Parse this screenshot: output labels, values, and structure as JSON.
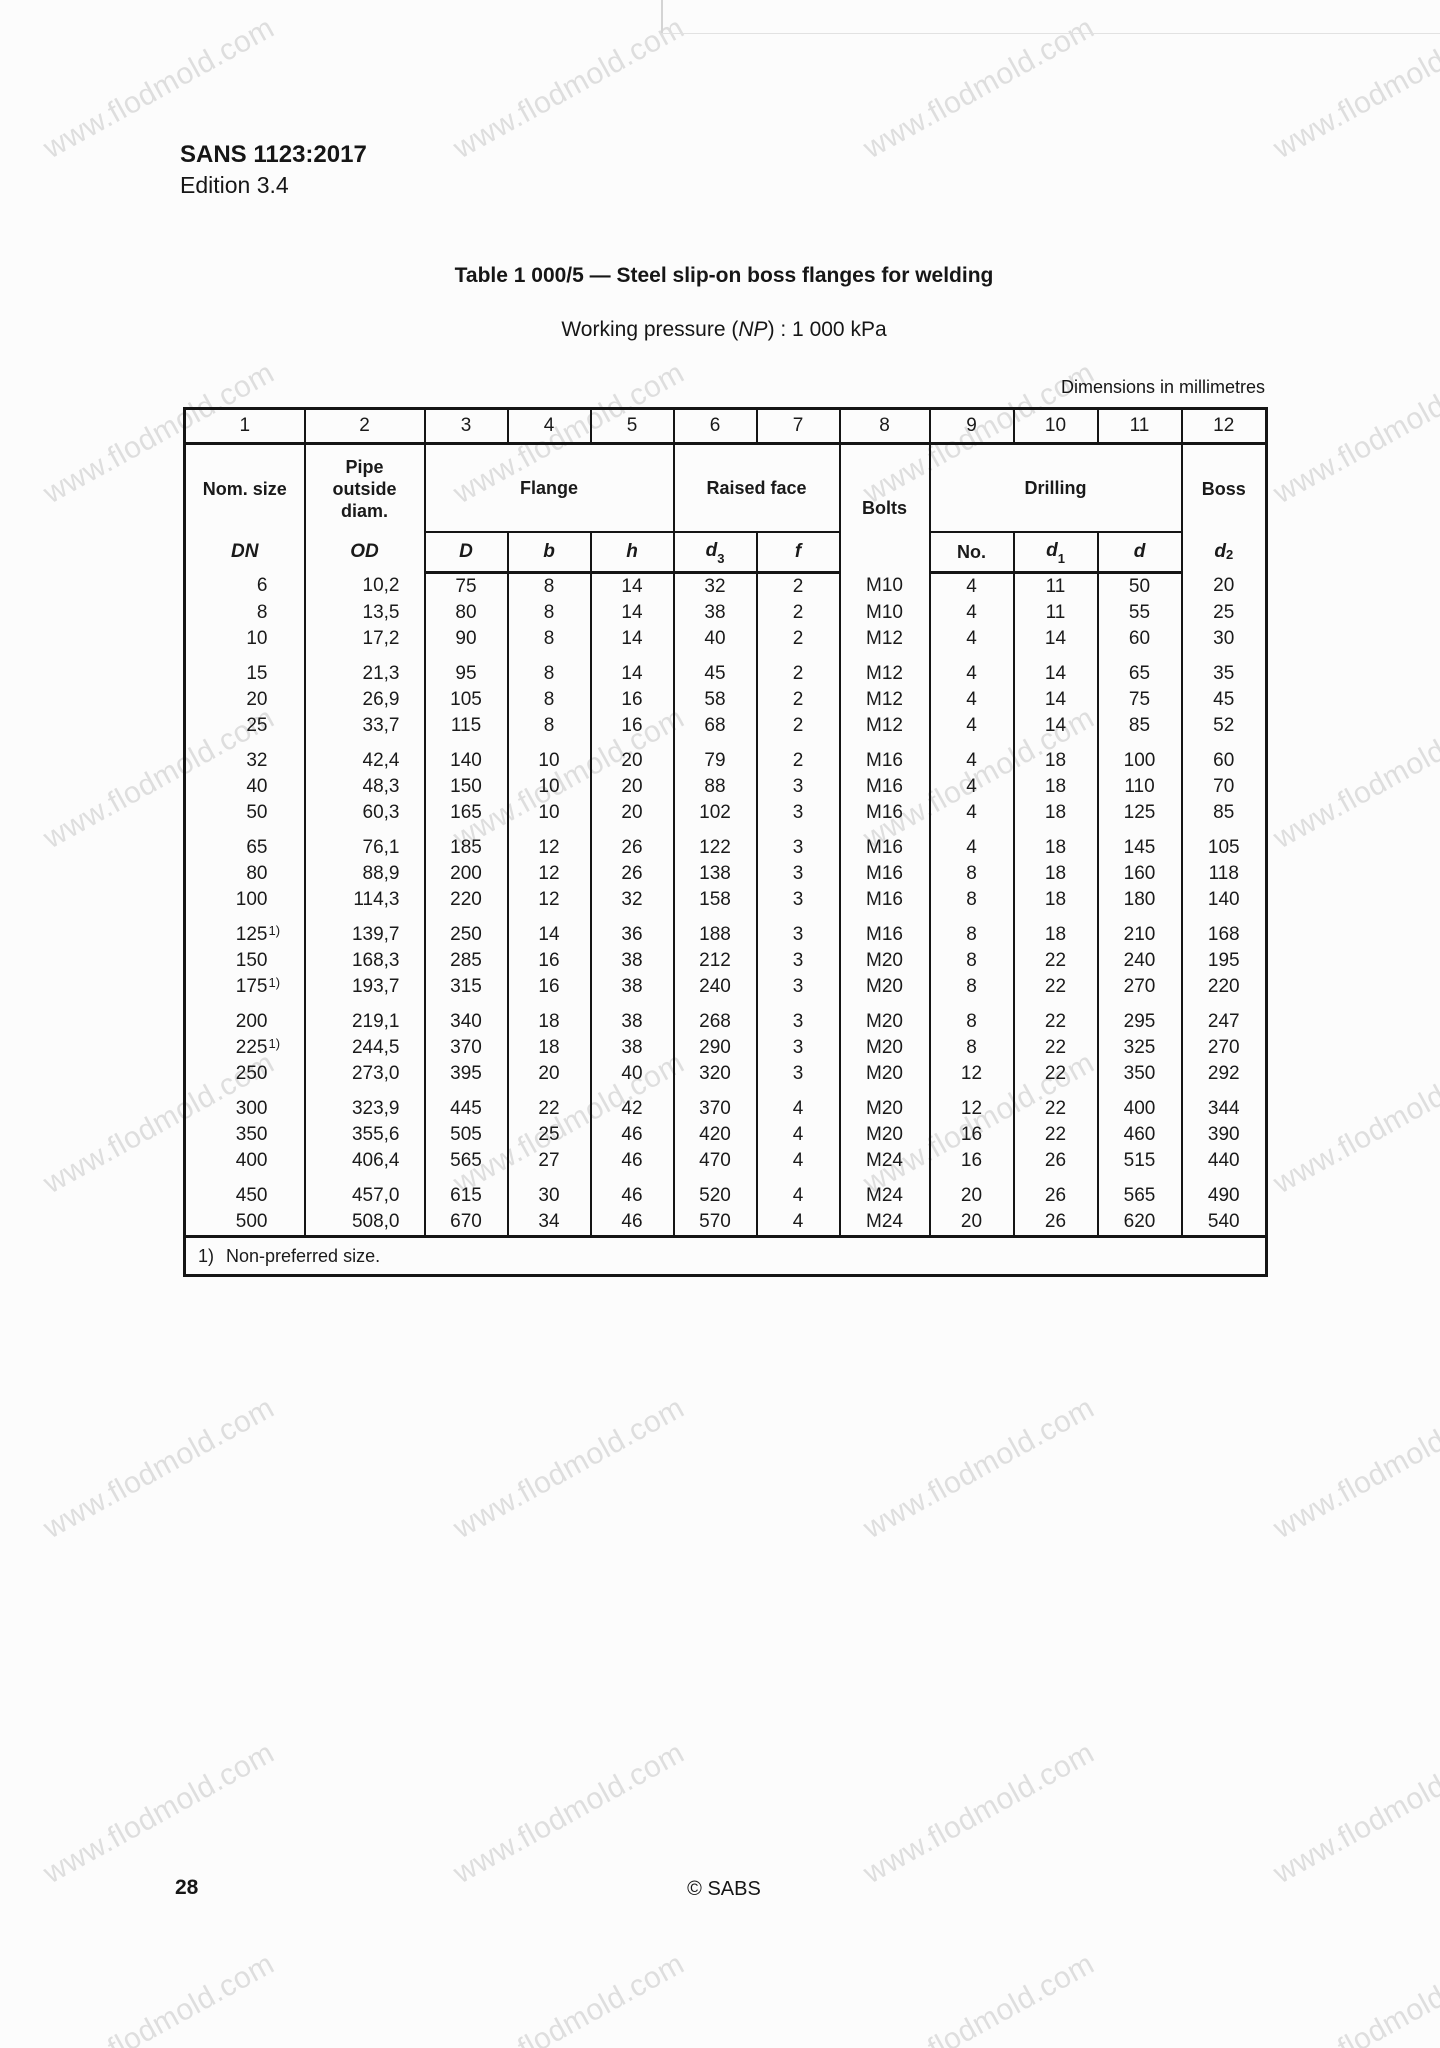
{
  "page_header": {
    "standard": "SANS 1123:2017",
    "edition": "Edition 3.4"
  },
  "table_title": "Table 1 000/5 — Steel slip-on boss flanges for welding",
  "pressure_note": {
    "prefix": "Working pressure (",
    "symbol": "NP",
    "suffix": ") : 1 000 kPa"
  },
  "dimensions_note": "Dimensions in millimetres",
  "watermark": {
    "text": "www.flodmold.com",
    "color": "#c6c6c6"
  },
  "table": {
    "column_numbers": [
      "1",
      "2",
      "3",
      "4",
      "5",
      "6",
      "7",
      "8",
      "9",
      "10",
      "11",
      "12"
    ],
    "groups": {
      "nom_size": {
        "label": "Nom. size",
        "symbol": "DN"
      },
      "pipe_od": {
        "label": "Pipe\noutside\ndiam.",
        "symbol": "OD"
      },
      "flange": {
        "label": "Flange",
        "symbols": [
          "D",
          "b",
          "h"
        ]
      },
      "raised_face": {
        "label": "Raised face",
        "symbols": [
          {
            "base": "d",
            "sub": "3"
          },
          {
            "base": "f",
            "sub": ""
          }
        ]
      },
      "bolts": {
        "label": "Bolts"
      },
      "drilling": {
        "label": "Drilling",
        "no_label": "No.",
        "symbols": [
          {
            "base": "d",
            "sub": "1"
          },
          {
            "base": "d",
            "sub": ""
          }
        ]
      },
      "boss": {
        "label": "Boss",
        "symbol": {
          "base": "d",
          "sub": "2"
        }
      }
    },
    "rows": [
      {
        "dn": "6",
        "note": "",
        "od": "10,2",
        "fd": "75",
        "fb": "8",
        "fh": "14",
        "d3": "32",
        "f": "2",
        "bolts": "M10",
        "no": "4",
        "d1": "11",
        "d": "50",
        "d2": "20",
        "gap": false
      },
      {
        "dn": "8",
        "note": "",
        "od": "13,5",
        "fd": "80",
        "fb": "8",
        "fh": "14",
        "d3": "38",
        "f": "2",
        "bolts": "M10",
        "no": "4",
        "d1": "11",
        "d": "55",
        "d2": "25",
        "gap": false
      },
      {
        "dn": "10",
        "note": "",
        "od": "17,2",
        "fd": "90",
        "fb": "8",
        "fh": "14",
        "d3": "40",
        "f": "2",
        "bolts": "M12",
        "no": "4",
        "d1": "14",
        "d": "60",
        "d2": "30",
        "gap": false
      },
      {
        "dn": "15",
        "note": "",
        "od": "21,3",
        "fd": "95",
        "fb": "8",
        "fh": "14",
        "d3": "45",
        "f": "2",
        "bolts": "M12",
        "no": "4",
        "d1": "14",
        "d": "65",
        "d2": "35",
        "gap": true
      },
      {
        "dn": "20",
        "note": "",
        "od": "26,9",
        "fd": "105",
        "fb": "8",
        "fh": "16",
        "d3": "58",
        "f": "2",
        "bolts": "M12",
        "no": "4",
        "d1": "14",
        "d": "75",
        "d2": "45",
        "gap": false
      },
      {
        "dn": "25",
        "note": "",
        "od": "33,7",
        "fd": "115",
        "fb": "8",
        "fh": "16",
        "d3": "68",
        "f": "2",
        "bolts": "M12",
        "no": "4",
        "d1": "14",
        "d": "85",
        "d2": "52",
        "gap": false
      },
      {
        "dn": "32",
        "note": "",
        "od": "42,4",
        "fd": "140",
        "fb": "10",
        "fh": "20",
        "d3": "79",
        "f": "2",
        "bolts": "M16",
        "no": "4",
        "d1": "18",
        "d": "100",
        "d2": "60",
        "gap": true
      },
      {
        "dn": "40",
        "note": "",
        "od": "48,3",
        "fd": "150",
        "fb": "10",
        "fh": "20",
        "d3": "88",
        "f": "3",
        "bolts": "M16",
        "no": "4",
        "d1": "18",
        "d": "110",
        "d2": "70",
        "gap": false
      },
      {
        "dn": "50",
        "note": "",
        "od": "60,3",
        "fd": "165",
        "fb": "10",
        "fh": "20",
        "d3": "102",
        "f": "3",
        "bolts": "M16",
        "no": "4",
        "d1": "18",
        "d": "125",
        "d2": "85",
        "gap": false
      },
      {
        "dn": "65",
        "note": "",
        "od": "76,1",
        "fd": "185",
        "fb": "12",
        "fh": "26",
        "d3": "122",
        "f": "3",
        "bolts": "M16",
        "no": "4",
        "d1": "18",
        "d": "145",
        "d2": "105",
        "gap": true
      },
      {
        "dn": "80",
        "note": "",
        "od": "88,9",
        "fd": "200",
        "fb": "12",
        "fh": "26",
        "d3": "138",
        "f": "3",
        "bolts": "M16",
        "no": "8",
        "d1": "18",
        "d": "160",
        "d2": "118",
        "gap": false
      },
      {
        "dn": "100",
        "note": "",
        "od": "114,3",
        "fd": "220",
        "fb": "12",
        "fh": "32",
        "d3": "158",
        "f": "3",
        "bolts": "M16",
        "no": "8",
        "d1": "18",
        "d": "180",
        "d2": "140",
        "gap": false
      },
      {
        "dn": "125",
        "note": "1)",
        "od": "139,7",
        "fd": "250",
        "fb": "14",
        "fh": "36",
        "d3": "188",
        "f": "3",
        "bolts": "M16",
        "no": "8",
        "d1": "18",
        "d": "210",
        "d2": "168",
        "gap": true
      },
      {
        "dn": "150",
        "note": "",
        "od": "168,3",
        "fd": "285",
        "fb": "16",
        "fh": "38",
        "d3": "212",
        "f": "3",
        "bolts": "M20",
        "no": "8",
        "d1": "22",
        "d": "240",
        "d2": "195",
        "gap": false
      },
      {
        "dn": "175",
        "note": "1)",
        "od": "193,7",
        "fd": "315",
        "fb": "16",
        "fh": "38",
        "d3": "240",
        "f": "3",
        "bolts": "M20",
        "no": "8",
        "d1": "22",
        "d": "270",
        "d2": "220",
        "gap": false
      },
      {
        "dn": "200",
        "note": "",
        "od": "219,1",
        "fd": "340",
        "fb": "18",
        "fh": "38",
        "d3": "268",
        "f": "3",
        "bolts": "M20",
        "no": "8",
        "d1": "22",
        "d": "295",
        "d2": "247",
        "gap": true
      },
      {
        "dn": "225",
        "note": "1)",
        "od": "244,5",
        "fd": "370",
        "fb": "18",
        "fh": "38",
        "d3": "290",
        "f": "3",
        "bolts": "M20",
        "no": "8",
        "d1": "22",
        "d": "325",
        "d2": "270",
        "gap": false
      },
      {
        "dn": "250",
        "note": "",
        "od": "273,0",
        "fd": "395",
        "fb": "20",
        "fh": "40",
        "d3": "320",
        "f": "3",
        "bolts": "M20",
        "no": "12",
        "d1": "22",
        "d": "350",
        "d2": "292",
        "gap": false
      },
      {
        "dn": "300",
        "note": "",
        "od": "323,9",
        "fd": "445",
        "fb": "22",
        "fh": "42",
        "d3": "370",
        "f": "4",
        "bolts": "M20",
        "no": "12",
        "d1": "22",
        "d": "400",
        "d2": "344",
        "gap": true
      },
      {
        "dn": "350",
        "note": "",
        "od": "355,6",
        "fd": "505",
        "fb": "25",
        "fh": "46",
        "d3": "420",
        "f": "4",
        "bolts": "M20",
        "no": "16",
        "d1": "22",
        "d": "460",
        "d2": "390",
        "gap": false
      },
      {
        "dn": "400",
        "note": "",
        "od": "406,4",
        "fd": "565",
        "fb": "27",
        "fh": "46",
        "d3": "470",
        "f": "4",
        "bolts": "M24",
        "no": "16",
        "d1": "26",
        "d": "515",
        "d2": "440",
        "gap": false
      },
      {
        "dn": "450",
        "note": "",
        "od": "457,0",
        "fd": "615",
        "fb": "30",
        "fh": "46",
        "d3": "520",
        "f": "4",
        "bolts": "M24",
        "no": "20",
        "d1": "26",
        "d": "565",
        "d2": "490",
        "gap": true
      },
      {
        "dn": "500",
        "note": "",
        "od": "508,0",
        "fd": "670",
        "fb": "34",
        "fh": "46",
        "d3": "570",
        "f": "4",
        "bolts": "M24",
        "no": "20",
        "d1": "26",
        "d": "620",
        "d2": "540",
        "gap": false
      }
    ]
  },
  "footnote": {
    "marker": "1)",
    "text": "Non-preferred size."
  },
  "page_footer": {
    "page_number": "28",
    "copyright": "© SABS"
  }
}
